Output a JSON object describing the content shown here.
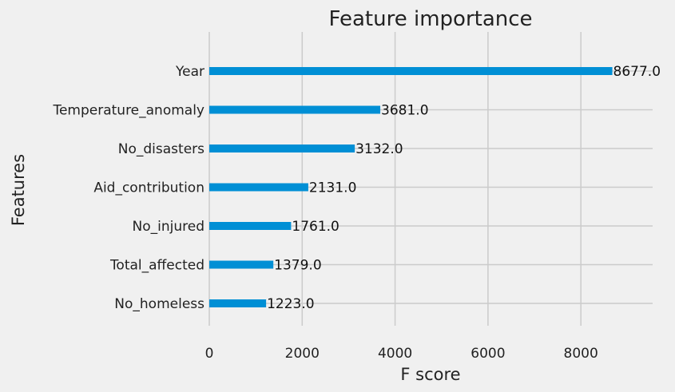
{
  "chart_data": {
    "type": "bar",
    "orientation": "horizontal",
    "title": "Feature importance",
    "xlabel": "F score",
    "ylabel": "Features",
    "categories": [
      "Year",
      "Temperature_anomaly",
      "No_disasters",
      "Aid_contribution",
      "No_injured",
      "Total_affected",
      "No_homeless"
    ],
    "values": [
      8677.0,
      3681.0,
      3132.0,
      2131.0,
      1761.0,
      1379.0,
      1223.0
    ],
    "value_labels": [
      "8677.0",
      "3681.0",
      "3132.0",
      "2131.0",
      "1761.0",
      "1379.0",
      "1223.0"
    ],
    "xlim": [
      0,
      9544.7
    ],
    "xticks": [
      0,
      2000,
      4000,
      6000,
      8000
    ],
    "xtick_labels": [
      "0",
      "2000",
      "4000",
      "6000",
      "8000"
    ],
    "grid": true,
    "bar_color": "#008fd5",
    "background_color": "#f0f0f0",
    "grid_color": "#cbcbcb"
  }
}
